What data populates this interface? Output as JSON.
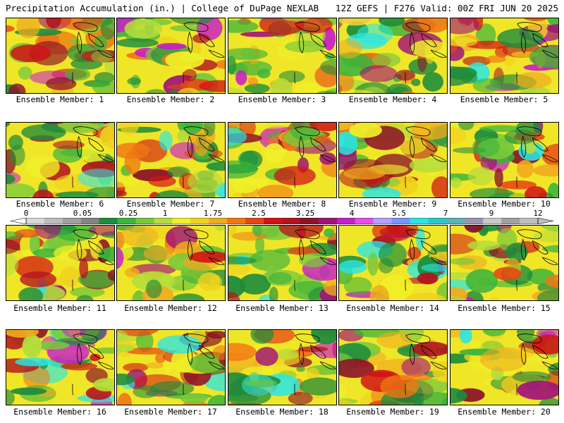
{
  "header": {
    "title": "Precipitation Accumulation (in.) | College of DuPage NEXLAB",
    "run_info": "12Z GEFS | F276 Valid: 00Z FRI JUN 20 2025"
  },
  "colorbar": {
    "labels": [
      "0",
      "0.05",
      "0.25",
      "1",
      "1.75",
      "2.5",
      "3.25",
      "4",
      "5.5",
      "7",
      "9",
      "12"
    ],
    "colors": [
      "#d8d8d8",
      "#bcbcbc",
      "#a0a0a0",
      "#848484",
      "#1e8c3c",
      "#3cb43c",
      "#78c83c",
      "#b4dc3c",
      "#f0f028",
      "#f0d21e",
      "#f0aa1e",
      "#f07814",
      "#e64614",
      "#d21414",
      "#b4141e",
      "#8c1428",
      "#a01478",
      "#c81ec8",
      "#e650e6",
      "#b4a0ff",
      "#7896ff",
      "#28e6e6",
      "#28c8c8",
      "#5ab4b4",
      "#9696b4",
      "#c8c8c8",
      "#a0a0a0",
      "#bebebe"
    ],
    "accent": "#e61414"
  },
  "members": [
    {
      "label": "Ensemble Member: 1"
    },
    {
      "label": "Ensemble Member: 2"
    },
    {
      "label": "Ensemble Member: 3"
    },
    {
      "label": "Ensemble Member: 4"
    },
    {
      "label": "Ensemble Member: 5"
    },
    {
      "label": "Ensemble Member: 6"
    },
    {
      "label": "Ensemble Member: 7"
    },
    {
      "label": "Ensemble Member: 8"
    },
    {
      "label": "Ensemble Member: 9"
    },
    {
      "label": "Ensemble Member: 10"
    },
    {
      "label": "Ensemble Member: 11"
    },
    {
      "label": "Ensemble Member: 12"
    },
    {
      "label": "Ensemble Member: 13"
    },
    {
      "label": "Ensemble Member: 14"
    },
    {
      "label": "Ensemble Member: 15"
    },
    {
      "label": "Ensemble Member: 16"
    },
    {
      "label": "Ensemble Member: 17"
    },
    {
      "label": "Ensemble Member: 18"
    },
    {
      "label": "Ensemble Member: 19"
    },
    {
      "label": "Ensemble Member: 20"
    }
  ]
}
